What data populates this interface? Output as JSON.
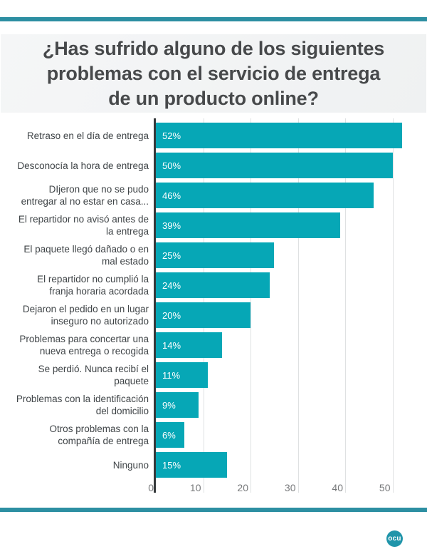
{
  "chart_data": {
    "type": "bar",
    "orientation": "horizontal",
    "title": "¿Has sufrido alguno de los siguientes\nproblemas con el servicio de entrega\nde un producto online?",
    "categories": [
      "Retraso en el día de entrega",
      "Desconocía la hora de entrega",
      "DIjeron que no se pudo\nentregar al no estar en casa...",
      "El repartidor no avisó antes de\nla entrega",
      "El paquete llegó dañado o en\nmal estado",
      "El repartidor no cumplió la\nfranja horaria acordada",
      "Dejaron el pedido en un lugar\ninseguro no autorizado",
      "Problemas para concertar una\nnueva entrega o recogida",
      "Se perdió. Nunca recibí el\npaquete",
      "Problemas con la identificación\ndel domicilio",
      "Otros problemas con la\ncompañía de entrega",
      "Ninguno"
    ],
    "values": [
      52,
      50,
      46,
      39,
      25,
      24,
      20,
      14,
      11,
      9,
      6,
      15
    ],
    "value_labels": [
      "52%",
      "50%",
      "46%",
      "39%",
      "25%",
      "24%",
      "20%",
      "14%",
      "11%",
      "9%",
      "6%",
      "15%"
    ],
    "x_ticks": [
      0,
      10,
      20,
      30,
      40,
      50
    ],
    "xlim": [
      0,
      57
    ],
    "xlabel": "",
    "ylabel": "",
    "grid": "vertical",
    "legend": "none",
    "value_label_position": "inside-left"
  },
  "footer": {
    "logo_text": "ocu"
  },
  "colors": {
    "bar": "#06a7b6",
    "rule": "#2d8fa2",
    "logo_bg": "#2095aa",
    "title_text": "#47494b",
    "category_text": "#3f4447",
    "tick_text": "#77797b",
    "axis_line": "#35393b",
    "gridline": "#dfe1e2",
    "title_background": "#f2f3f4",
    "value_label_text": "#ffffff"
  }
}
